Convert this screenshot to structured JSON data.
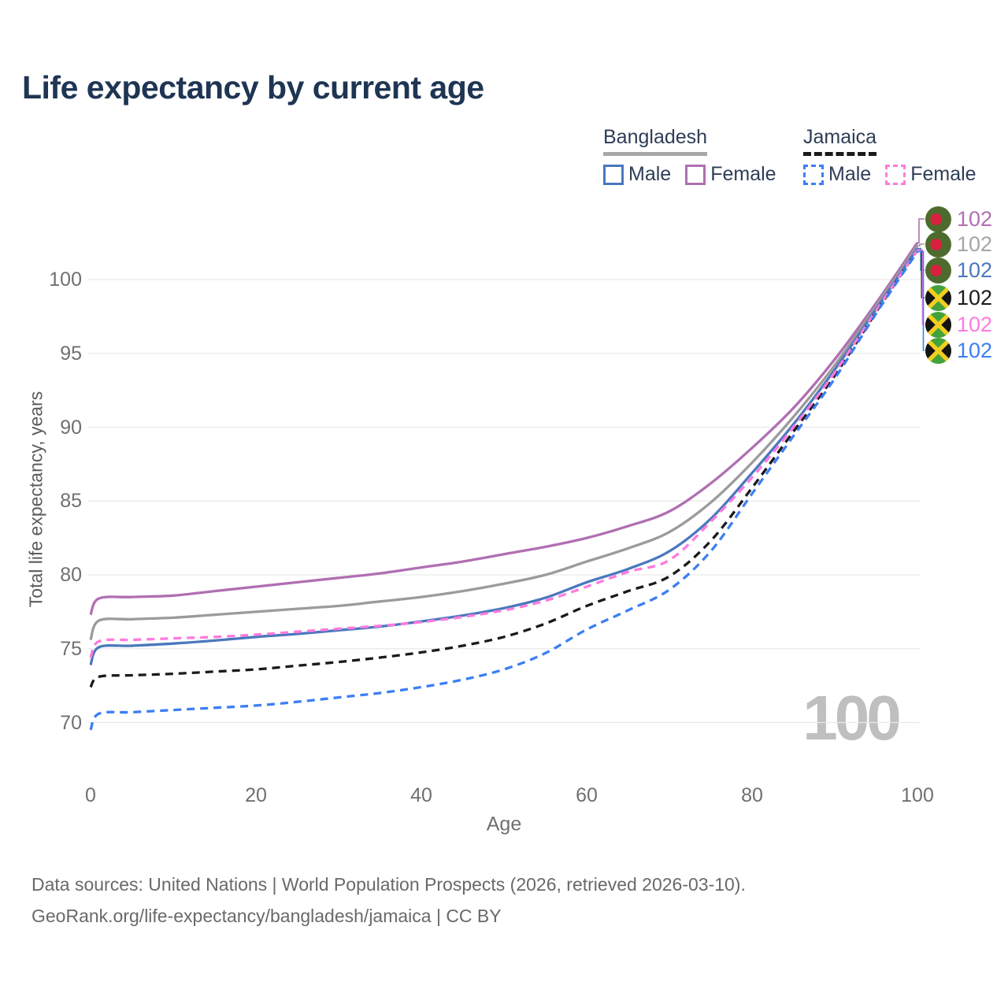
{
  "title": "Life expectancy by current age",
  "legend": {
    "groups": [
      {
        "country": "Bangladesh",
        "line_style": "solid",
        "underline_color": "#a8a8a8",
        "items": [
          {
            "label": "Male",
            "color": "#4a78bd"
          },
          {
            "label": "Female",
            "color": "#b06fb2"
          }
        ]
      },
      {
        "country": "Jamaica",
        "line_style": "dashed",
        "underline_color": "#1a1a1a",
        "items": [
          {
            "label": "Male",
            "color": "#3c7ef5"
          },
          {
            "label": "Female",
            "color": "#ff7ade"
          }
        ]
      }
    ]
  },
  "chart_data": {
    "type": "line",
    "title": "Life expectancy by current age",
    "xlabel": "Age",
    "ylabel": "Total life expectancy, years",
    "xlim": [
      0,
      100
    ],
    "ylim": [
      70,
      100
    ],
    "x_ticks": [
      0,
      20,
      40,
      60,
      80,
      100
    ],
    "y_ticks": [
      70,
      75,
      80,
      85,
      90,
      95,
      100
    ],
    "grid": "horizontal-only",
    "legend_position": "top-right",
    "ages": [
      0,
      1,
      5,
      10,
      15,
      20,
      25,
      30,
      35,
      40,
      45,
      50,
      55,
      60,
      65,
      70,
      75,
      80,
      85,
      90,
      95,
      100
    ],
    "series": [
      {
        "name": "Bangladesh Female",
        "country": "Bangladesh",
        "sex": "Female",
        "style": "solid",
        "color": "#b06fb2",
        "end_label": 102,
        "values": [
          77.3,
          78.4,
          78.5,
          78.6,
          78.9,
          79.2,
          79.5,
          79.8,
          80.1,
          80.5,
          80.9,
          81.4,
          81.9,
          82.5,
          83.3,
          84.3,
          86.2,
          88.6,
          91.3,
          94.6,
          98.4,
          102.5
        ]
      },
      {
        "name": "Bangladesh Both sexes",
        "country": "Bangladesh",
        "sex": "Both",
        "style": "solid",
        "color": "#9b9b9b",
        "end_label": 102,
        "values": [
          75.6,
          76.9,
          77.0,
          77.1,
          77.3,
          77.5,
          77.7,
          77.9,
          78.2,
          78.5,
          78.9,
          79.4,
          80.0,
          80.9,
          81.8,
          82.9,
          84.9,
          87.6,
          90.7,
          94.2,
          98.2,
          102.3
        ]
      },
      {
        "name": "Bangladesh Male",
        "country": "Bangladesh",
        "sex": "Male",
        "style": "solid",
        "color": "#4a78bd",
        "end_label": 102,
        "values": [
          73.9,
          75.1,
          75.2,
          75.35,
          75.55,
          75.8,
          76.0,
          76.25,
          76.5,
          76.85,
          77.25,
          77.75,
          78.45,
          79.5,
          80.4,
          81.6,
          83.8,
          86.9,
          90.2,
          93.9,
          98.0,
          102.1
        ]
      },
      {
        "name": "Jamaica Both sexes",
        "country": "Jamaica",
        "sex": "Both",
        "style": "dashed",
        "color": "#1a1a1a",
        "end_label": 102,
        "values": [
          72.4,
          73.1,
          73.2,
          73.3,
          73.45,
          73.6,
          73.85,
          74.1,
          74.4,
          74.75,
          75.2,
          75.8,
          76.7,
          77.9,
          78.9,
          79.9,
          82.3,
          85.9,
          89.7,
          93.5,
          97.8,
          102.0
        ]
      },
      {
        "name": "Jamaica Female",
        "country": "Jamaica",
        "sex": "Female",
        "style": "dashed",
        "color": "#ff7ade",
        "end_label": 102,
        "values": [
          74.4,
          75.5,
          75.6,
          75.7,
          75.8,
          75.95,
          76.15,
          76.35,
          76.55,
          76.8,
          77.15,
          77.6,
          78.25,
          79.2,
          80.2,
          81.0,
          83.6,
          86.6,
          90.0,
          93.7,
          97.9,
          102.0
        ]
      },
      {
        "name": "Jamaica Male",
        "country": "Jamaica",
        "sex": "Male",
        "style": "dashed",
        "color": "#3c7ef5",
        "end_label": 102,
        "values": [
          69.5,
          70.6,
          70.7,
          70.85,
          71.0,
          71.15,
          71.4,
          71.7,
          72.0,
          72.4,
          72.9,
          73.6,
          74.7,
          76.3,
          77.6,
          79.0,
          81.6,
          85.5,
          89.4,
          93.3,
          97.7,
          101.9
        ]
      }
    ],
    "watermark": "100"
  },
  "end_labels": {
    "rows": [
      {
        "country": "Bangladesh",
        "value": "102",
        "color": "#b06fb2"
      },
      {
        "country": "Bangladesh",
        "value": "102",
        "color": "#a6a6a6"
      },
      {
        "country": "Bangladesh",
        "value": "102",
        "color": "#4a78bd"
      },
      {
        "country": "Jamaica",
        "value": "102",
        "color": "#1a1a1a"
      },
      {
        "country": "Jamaica",
        "value": "102",
        "color": "#ff7ade"
      },
      {
        "country": "Jamaica",
        "value": "102",
        "color": "#3c7ef5"
      }
    ]
  },
  "footer": {
    "line1": "Data sources: United Nations | World Population Prospects (2026, retrieved 2026-03-10).",
    "line2": "GeoRank.org/life-expectancy/bangladesh/jamaica | CC BY"
  }
}
